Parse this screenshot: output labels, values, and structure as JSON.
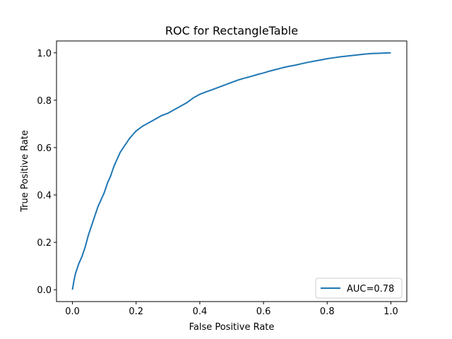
{
  "chart_data": {
    "type": "line",
    "title": "ROC for RectangleTable",
    "xlabel": "False Positive Rate",
    "ylabel": "True Positive Rate",
    "xlim": [
      -0.05,
      1.05
    ],
    "ylim": [
      -0.05,
      1.05
    ],
    "x_ticks": [
      0.0,
      0.2,
      0.4,
      0.6,
      0.8,
      1.0
    ],
    "x_tick_labels": [
      "0.0",
      "0.2",
      "0.4",
      "0.6",
      "0.8",
      "1.0"
    ],
    "y_ticks": [
      0.0,
      0.2,
      0.4,
      0.6,
      0.8,
      1.0
    ],
    "y_tick_labels": [
      "0.0",
      "0.2",
      "0.4",
      "0.6",
      "0.8",
      "1.0"
    ],
    "grid": false,
    "legend_position": "lower-right",
    "series": [
      {
        "name": "AUC=0.78",
        "color": "#1f77b4",
        "x": [
          0.0,
          0.005,
          0.01,
          0.02,
          0.03,
          0.04,
          0.05,
          0.06,
          0.07,
          0.08,
          0.09,
          0.1,
          0.11,
          0.12,
          0.13,
          0.14,
          0.15,
          0.16,
          0.17,
          0.18,
          0.19,
          0.2,
          0.22,
          0.24,
          0.26,
          0.28,
          0.3,
          0.32,
          0.34,
          0.36,
          0.38,
          0.4,
          0.42,
          0.44,
          0.46,
          0.48,
          0.5,
          0.52,
          0.54,
          0.56,
          0.58,
          0.6,
          0.62,
          0.64,
          0.66,
          0.68,
          0.7,
          0.72,
          0.74,
          0.76,
          0.78,
          0.8,
          0.82,
          0.84,
          0.86,
          0.88,
          0.9,
          0.92,
          0.94,
          0.96,
          0.98,
          1.0
        ],
        "y": [
          0.0,
          0.04,
          0.07,
          0.11,
          0.14,
          0.18,
          0.23,
          0.27,
          0.31,
          0.35,
          0.38,
          0.41,
          0.45,
          0.48,
          0.52,
          0.55,
          0.58,
          0.6,
          0.62,
          0.64,
          0.655,
          0.67,
          0.69,
          0.705,
          0.72,
          0.735,
          0.745,
          0.76,
          0.775,
          0.79,
          0.81,
          0.825,
          0.835,
          0.845,
          0.855,
          0.865,
          0.875,
          0.885,
          0.893,
          0.9,
          0.908,
          0.915,
          0.923,
          0.93,
          0.937,
          0.943,
          0.948,
          0.954,
          0.96,
          0.965,
          0.97,
          0.975,
          0.979,
          0.983,
          0.986,
          0.989,
          0.992,
          0.995,
          0.997,
          0.998,
          0.999,
          1.0
        ]
      }
    ]
  }
}
